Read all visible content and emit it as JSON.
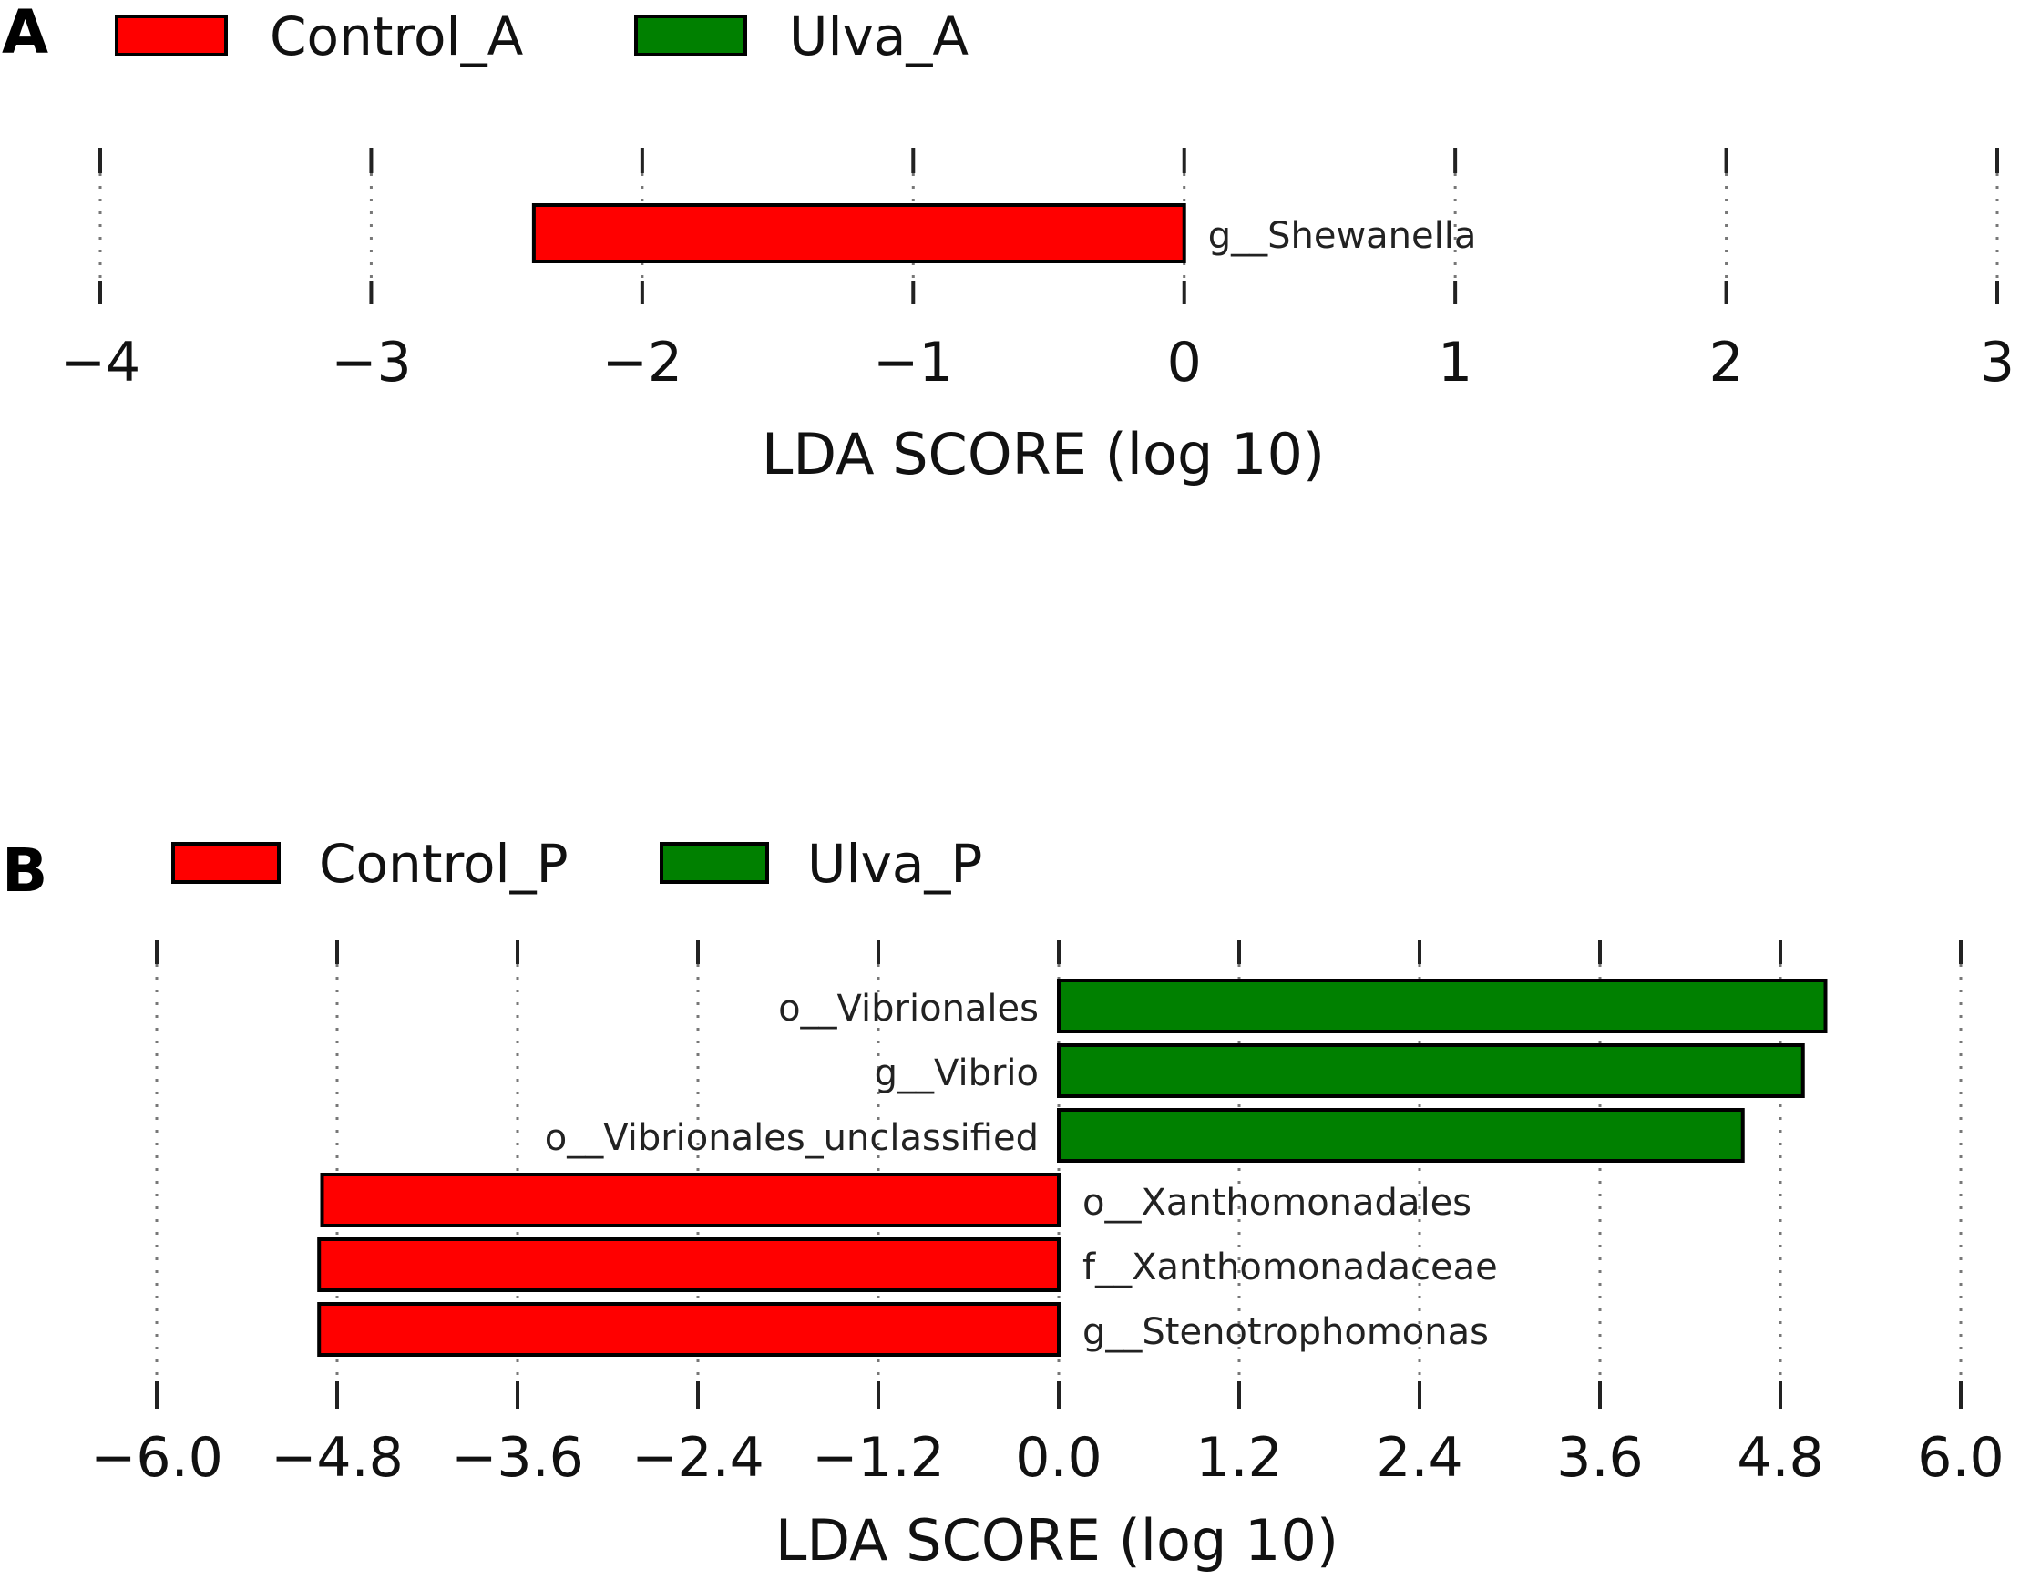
{
  "colors": {
    "control": "#ff0000",
    "ulva": "#008000"
  },
  "chart_data": [
    {
      "panel": "A",
      "type": "bar",
      "orientation": "horizontal",
      "legend": [
        {
          "name": "Control_A",
          "color_key": "control"
        },
        {
          "name": "Ulva_A",
          "color_key": "ulva"
        }
      ],
      "categories": [
        "g__Shewanella"
      ],
      "values": [
        -2.4
      ],
      "groups": [
        "Control_A"
      ],
      "xlabel": "LDA SCORE (log 10)",
      "xlim": [
        -4,
        3
      ],
      "xticks": [
        -4,
        -3,
        -2,
        -1,
        0,
        1,
        2,
        3
      ],
      "xtick_labels": [
        "−4",
        "−3",
        "−2",
        "−1",
        "0",
        "1",
        "2",
        "3"
      ],
      "grid": true
    },
    {
      "panel": "B",
      "type": "bar",
      "orientation": "horizontal",
      "legend": [
        {
          "name": "Control_P",
          "color_key": "control"
        },
        {
          "name": "Ulva_P",
          "color_key": "ulva"
        }
      ],
      "categories": [
        "o__Vibrionales",
        "g__Vibrio",
        "o__Vibrionales_unclassified",
        "o__Xanthomonadales",
        "f__Xanthomonadaceae",
        "g__Stenotrophomonas"
      ],
      "values": [
        5.1,
        4.95,
        4.55,
        -4.9,
        -4.92,
        -4.92
      ],
      "groups": [
        "Ulva_P",
        "Ulva_P",
        "Ulva_P",
        "Control_P",
        "Control_P",
        "Control_P"
      ],
      "xlabel": "LDA SCORE (log 10)",
      "xlim": [
        -6.0,
        6.0
      ],
      "xticks": [
        -6.0,
        -4.8,
        -3.6,
        -2.4,
        -1.2,
        0.0,
        1.2,
        2.4,
        3.6,
        4.8,
        6.0
      ],
      "xtick_labels": [
        "−6.0",
        "−4.8",
        "−3.6",
        "−2.4",
        "−1.2",
        "0.0",
        "1.2",
        "2.4",
        "3.6",
        "4.8",
        "6.0"
      ],
      "grid": true
    }
  ]
}
